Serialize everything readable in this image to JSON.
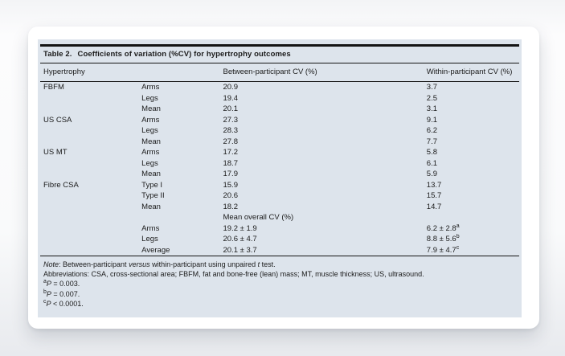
{
  "table": {
    "title_prefix": "Table 2.",
    "title_rest": "Coefficients of variation (%CV) for hypertrophy outcomes",
    "columns": {
      "c1": "Hypertrophy",
      "c2": "",
      "c3": "Between-participant CV (%)",
      "c4": "Within-participant CV (%)"
    },
    "rows": [
      {
        "group": "FBFM",
        "region": "Arms",
        "between": "20.9",
        "within": "3.7",
        "within_sup": ""
      },
      {
        "group": "",
        "region": "Legs",
        "between": "19.4",
        "within": "2.5",
        "within_sup": ""
      },
      {
        "group": "",
        "region": "Mean",
        "between": "20.1",
        "within": "3.1",
        "within_sup": ""
      },
      {
        "group": "US CSA",
        "region": "Arms",
        "between": "27.3",
        "within": "9.1",
        "within_sup": ""
      },
      {
        "group": "",
        "region": "Legs",
        "between": "28.3",
        "within": "6.2",
        "within_sup": ""
      },
      {
        "group": "",
        "region": "Mean",
        "between": "27.8",
        "within": "7.7",
        "within_sup": ""
      },
      {
        "group": "US MT",
        "region": "Arms",
        "between": "17.2",
        "within": "5.8",
        "within_sup": ""
      },
      {
        "group": "",
        "region": "Legs",
        "between": "18.7",
        "within": "6.1",
        "within_sup": ""
      },
      {
        "group": "",
        "region": "Mean",
        "between": "17.9",
        "within": "5.9",
        "within_sup": ""
      },
      {
        "group": "Fibre CSA",
        "region": "Type I",
        "between": "15.9",
        "within": "13.7",
        "within_sup": ""
      },
      {
        "group": "",
        "region": "Type II",
        "between": "20.6",
        "within": "15.7",
        "within_sup": ""
      },
      {
        "group": "",
        "region": "Mean",
        "between": "18.2",
        "within": "14.7",
        "within_sup": ""
      },
      {
        "group": "",
        "region": "",
        "between": "Mean overall CV (%)",
        "within": "",
        "within_sup": ""
      },
      {
        "group": "",
        "region": "Arms",
        "between": "19.2 ± 1.9",
        "within": "6.2 ± 2.8",
        "within_sup": "a"
      },
      {
        "group": "",
        "region": "Legs",
        "between": "20.6 ± 4.7",
        "within": "8.8 ± 5.6",
        "within_sup": "b"
      },
      {
        "group": "",
        "region": "Average",
        "between": "20.1 ± 3.7",
        "within": "7.9 ± 4.7",
        "within_sup": "c"
      }
    ],
    "footnotes": {
      "note_segments": [
        {
          "text": "Note",
          "italic": true
        },
        {
          "text": ": Between-participant ",
          "italic": false
        },
        {
          "text": "versus",
          "italic": true
        },
        {
          "text": " within-participant using unpaired ",
          "italic": false
        },
        {
          "text": "t",
          "italic": true
        },
        {
          "text": " test.",
          "italic": false
        }
      ],
      "abbreviations": "Abbreviations: CSA, cross-sectional area; FBFM, fat and bone-free (lean) mass; MT, muscle thickness; US, ultrasound.",
      "p_values": [
        {
          "sup": "a",
          "symbol": "P",
          "rest": " = 0.003."
        },
        {
          "sup": "b",
          "symbol": "P",
          "rest": " = 0.007."
        },
        {
          "sup": "c",
          "symbol": "P",
          "rest": " < 0.0001."
        }
      ]
    }
  },
  "colors": {
    "panel_background": "#dde4ec",
    "card_background": "#ffffff",
    "rule": "#141414",
    "text": "#1b1b1b"
  }
}
